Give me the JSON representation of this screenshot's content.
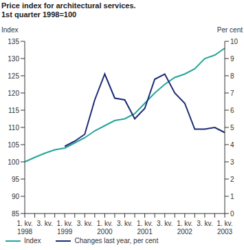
{
  "chart_data": {
    "type": "line",
    "title": "Price index for architectural services.",
    "subtitle": "1st quarter 1998=100",
    "y_label": "Index",
    "y2_label": "Per cent",
    "categories": [
      "1. kv. 1998",
      null,
      "3. kv.",
      null,
      "1. kv. 1999",
      null,
      "3. kv.",
      null,
      "1. kv. 2000",
      null,
      "3. kv.",
      null,
      "1. kv. 2001",
      null,
      "3. kv.",
      null,
      "1. kv. 2002",
      null,
      "3. kv.",
      null,
      "1. kv. 2003"
    ],
    "series": [
      {
        "name": "Index",
        "color": "#23a59b",
        "values": [
          100,
          101.3,
          102.5,
          103.5,
          104,
          105.5,
          107,
          109,
          110.5,
          112,
          112.5,
          114,
          117,
          120,
          122.5,
          124.5,
          125.5,
          127,
          130,
          131,
          133
        ]
      },
      {
        "name": "Changes last year, per cent",
        "color": "#1b2a74",
        "axis": "y2",
        "values": [
          null,
          null,
          null,
          null,
          3.9,
          4.2,
          4.6,
          6.6,
          8.1,
          6.7,
          6.6,
          5.5,
          6.1,
          7.8,
          8.1,
          7.0,
          6.4,
          4.9,
          4.9,
          5.0,
          4.7
        ]
      }
    ],
    "ylim": [
      85,
      135
    ],
    "yticks": [
      85,
      90,
      95,
      100,
      105,
      110,
      115,
      120,
      125,
      130,
      135
    ],
    "y2lim": [
      0,
      10
    ],
    "y2ticks": [
      0,
      1,
      2,
      3,
      4,
      5,
      6,
      7,
      8,
      9,
      10
    ],
    "grid": false,
    "legend": "bottom"
  }
}
